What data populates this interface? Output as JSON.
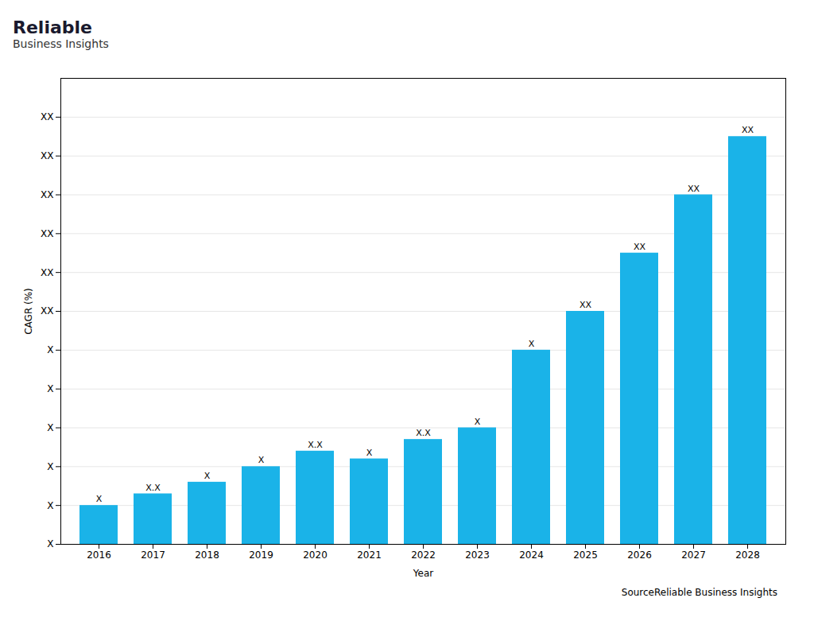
{
  "chart_data": {
    "type": "bar",
    "categories": [
      "2016",
      "2017",
      "2018",
      "2019",
      "2020",
      "2021",
      "2022",
      "2023",
      "2024",
      "2025",
      "2026",
      "2027",
      "2028"
    ],
    "values": [
      1.0,
      1.3,
      1.6,
      2.0,
      2.4,
      2.2,
      2.7,
      3.0,
      5.0,
      6.0,
      7.5,
      9.0,
      10.5
    ],
    "value_labels": [
      "X",
      "X.X",
      "X",
      "X",
      "X.X",
      "X",
      "X.X",
      "X",
      "X",
      "XX",
      "XX",
      "XX",
      "XX"
    ],
    "data_labels": true,
    "color": "#1ab3e8",
    "xlabel": "Year",
    "ylabel": "CAGR (%)",
    "ylim": [
      0,
      12
    ],
    "yticks": [
      {
        "value": 0,
        "label": "X"
      },
      {
        "value": 1,
        "label": "X"
      },
      {
        "value": 2,
        "label": "X"
      },
      {
        "value": 3,
        "label": "X"
      },
      {
        "value": 4,
        "label": "X"
      },
      {
        "value": 5,
        "label": "X"
      },
      {
        "value": 6,
        "label": "XX"
      },
      {
        "value": 7,
        "label": "XX"
      },
      {
        "value": 8,
        "label": "XX"
      },
      {
        "value": 9,
        "label": "XX"
      },
      {
        "value": 10,
        "label": "XX"
      },
      {
        "value": 11,
        "label": "XX"
      }
    ],
    "grid": true,
    "annotations": [
      "Reliable",
      "Business Insights",
      "Source​Reliable Business Insights"
    ]
  }
}
